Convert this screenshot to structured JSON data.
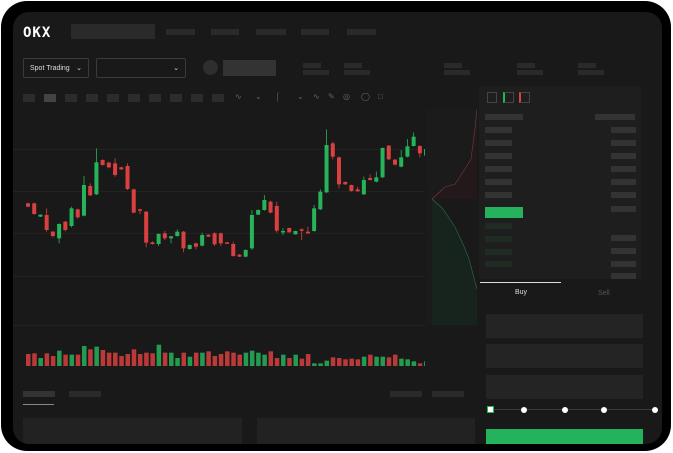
{
  "header": {
    "logo": "OKX"
  },
  "toolbar": {
    "market_select": "Spot Trading",
    "pair_select": ""
  },
  "order_form": {
    "tabs": [
      {
        "label": "Buy",
        "active": true
      },
      {
        "label": "Sell",
        "active": false
      }
    ],
    "leverage_levels": 5,
    "leverage_selected": 0
  },
  "colors": {
    "up": "#26b35a",
    "down": "#d9403f",
    "background": "#191919",
    "buy_button": "#24b35c"
  },
  "icons": [
    "chevron-down-icon",
    "line-tool-icon",
    "pen-icon",
    "camera-icon",
    "target-icon",
    "expand-icon",
    "orderbook-both-icon",
    "orderbook-buy-icon",
    "orderbook-sell-icon"
  ],
  "chart_data": {
    "type": "candlestick",
    "title": "",
    "candles": [
      [
        250,
        252,
        238,
        240
      ],
      [
        250,
        252,
        216,
        218
      ],
      [
        210,
        217,
        209,
        216
      ],
      [
        215,
        235,
        165,
        170
      ],
      [
        165,
        167,
        148,
        152
      ],
      [
        145,
        190,
        130,
        188
      ],
      [
        195,
        197,
        166,
        170
      ],
      [
        182,
        240,
        178,
        235
      ],
      [
        232,
        234,
        204,
        208
      ],
      [
        213,
        332,
        211,
        305
      ],
      [
        302,
        310,
        272,
        274
      ],
      [
        277,
        415,
        275,
        373
      ],
      [
        380,
        382,
        363,
        365
      ],
      [
        372,
        375,
        355,
        358
      ],
      [
        370,
        385,
        330,
        335
      ],
      [
        358,
        360,
        350,
        352
      ],
      [
        362,
        370,
        290,
        293
      ],
      [
        292,
        294,
        220,
        222
      ],
      [
        232,
        234,
        218,
        228
      ],
      [
        225,
        227,
        118,
        132
      ],
      [
        133,
        136,
        126,
        128
      ],
      [
        128,
        160,
        122,
        158
      ],
      [
        160,
        167,
        140,
        145
      ],
      [
        145,
        152,
        130,
        151
      ],
      [
        152,
        172,
        150,
        165
      ],
      [
        165,
        167,
        103,
        115
      ],
      [
        113,
        126,
        111,
        125
      ],
      [
        130,
        132,
        112,
        120
      ],
      [
        123,
        162,
        121,
        155
      ],
      [
        156,
        157,
        149,
        150
      ],
      [
        160,
        163,
        122,
        127
      ],
      [
        160,
        162,
        122,
        130
      ],
      [
        133,
        134,
        129,
        130
      ],
      [
        128,
        135,
        90,
        92
      ],
      [
        96,
        98,
        89,
        90
      ],
      [
        90,
        112,
        88,
        110
      ],
      [
        115,
        230,
        110,
        215
      ],
      [
        216,
        232,
        215,
        230
      ],
      [
        230,
        275,
        228,
        260
      ],
      [
        255,
        258,
        220,
        222
      ],
      [
        242,
        255,
        162,
        168
      ],
      [
        163,
        175,
        155,
        167
      ],
      [
        176,
        177,
        162,
        163
      ],
      [
        157,
        168,
        156,
        167
      ],
      [
        172,
        175,
        140,
        168
      ],
      [
        165,
        180,
        158,
        160
      ],
      [
        167,
        245,
        165,
        235
      ],
      [
        232,
        292,
        230,
        285
      ],
      [
        283,
        472,
        281,
        425
      ],
      [
        430,
        435,
        382,
        390
      ],
      [
        388,
        390,
        295,
        307
      ],
      [
        314,
        316,
        305,
        307
      ],
      [
        305,
        306,
        285,
        287
      ],
      [
        292,
        300,
        285,
        286
      ],
      [
        277,
        330,
        275,
        320
      ],
      [
        326,
        337,
        318,
        320
      ],
      [
        315,
        345,
        313,
        328
      ],
      [
        328,
        418,
        326,
        416
      ],
      [
        423,
        425,
        380,
        382
      ],
      [
        381,
        383,
        364,
        366
      ],
      [
        360,
        410,
        358,
        388
      ],
      [
        390,
        443,
        388,
        421
      ],
      [
        422,
        463,
        420,
        450
      ],
      [
        422,
        424,
        388,
        400
      ],
      [
        393,
        433,
        391,
        413
      ]
    ],
    "volumes": [
      36,
      38,
      24,
      38,
      30,
      46,
      34,
      34,
      34,
      60,
      50,
      58,
      48,
      40,
      40,
      30,
      36,
      50,
      36,
      40,
      38,
      64,
      40,
      40,
      24,
      40,
      28,
      40,
      40,
      44,
      30,
      36,
      44,
      40,
      34,
      40,
      46,
      40,
      34,
      44,
      24,
      34,
      24,
      34,
      22,
      36,
      8,
      8,
      16,
      26,
      24,
      20,
      22,
      20,
      28,
      34,
      28,
      28,
      26,
      34,
      22,
      20,
      14,
      8,
      14
    ]
  }
}
